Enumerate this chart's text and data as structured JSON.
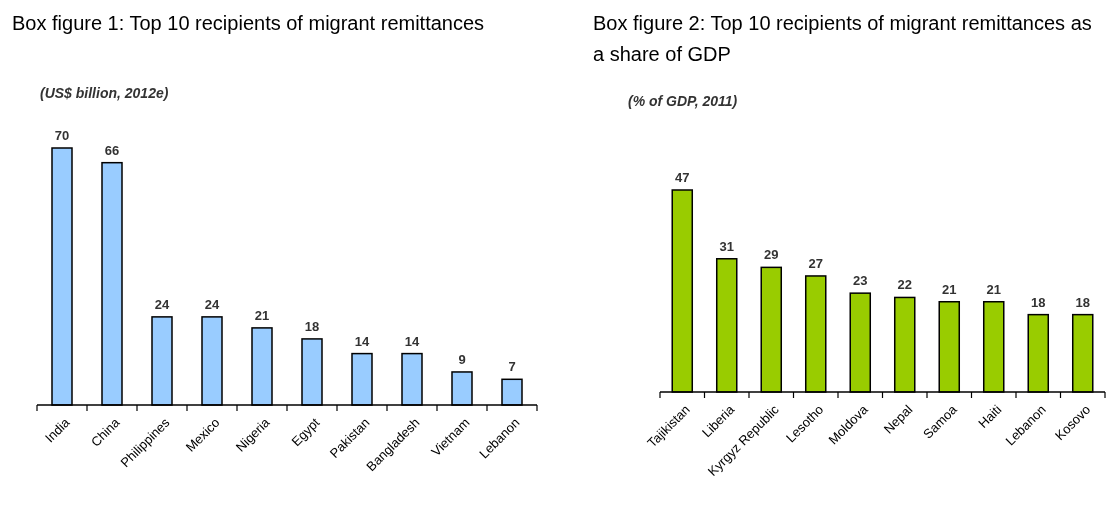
{
  "chart_data": [
    {
      "type": "bar",
      "title": "Box figure 1: Top 10 recipients of migrant remittances",
      "subtitle": "(US$ billion, 2012e)",
      "categories": [
        "India",
        "China",
        "Philippines",
        "Mexico",
        "Nigeria",
        "Egypt",
        "Pakistan",
        "Bangladesh",
        "Vietnam",
        "Lebanon"
      ],
      "values": [
        70,
        66,
        24,
        24,
        21,
        18,
        14,
        14,
        9,
        7
      ],
      "color": "#99ccff",
      "data_labels": true
    },
    {
      "type": "bar",
      "title": "Box figure 2: Top 10 recipients of migrant remittances as a share of GDP",
      "subtitle": "(% of GDP, 2011)",
      "categories": [
        "Tajikistan",
        "Liberia",
        "Kyrgyz Republic",
        "Lesotho",
        "Moldova",
        "Nepal",
        "Samoa",
        "Haiti",
        "Lebanon",
        "Kosovo"
      ],
      "values": [
        47,
        31,
        29,
        27,
        23,
        22,
        21,
        21,
        18,
        18
      ],
      "color": "#99cc00",
      "data_labels": true
    }
  ]
}
